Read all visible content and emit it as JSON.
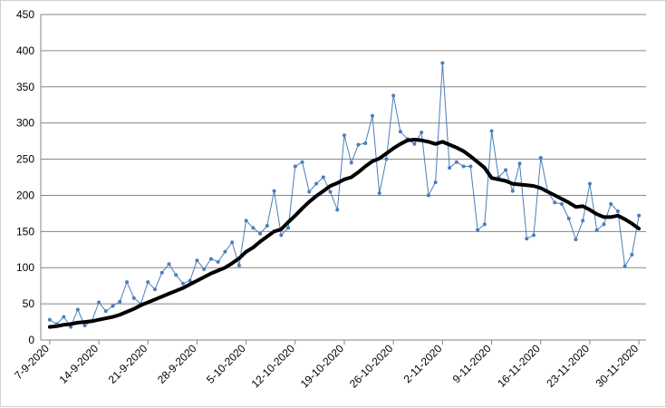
{
  "chart_data": {
    "type": "line",
    "title": "",
    "xlabel": "",
    "ylabel": "",
    "ylim": [
      0,
      450
    ],
    "yticks": [
      0,
      50,
      100,
      150,
      200,
      250,
      300,
      350,
      400,
      450
    ],
    "grid": "horizontal",
    "x_tick_labels": [
      "7-9-2020",
      "14-9-2020",
      "21-9-2020",
      "28-9-2020",
      "5-10-2020",
      "12-10-2020",
      "19-10-2020",
      "26-10-2020",
      "2-11-2020",
      "9-11-2020",
      "16-11-2020",
      "23-11-2020",
      "30-11-2020"
    ],
    "series": [
      {
        "color": "#4a7ebb",
        "style": "thin-line-with-markers",
        "values": [
          28,
          22,
          32,
          18,
          42,
          20,
          26,
          52,
          40,
          47,
          53,
          80,
          58,
          50,
          80,
          70,
          93,
          105,
          90,
          78,
          82,
          110,
          98,
          112,
          108,
          122,
          135,
          103,
          165,
          155,
          147,
          158,
          206,
          145,
          155,
          240,
          246,
          205,
          216,
          225,
          205,
          180,
          283,
          245,
          270,
          272,
          310,
          203,
          250,
          338,
          288,
          278,
          271,
          287,
          200,
          218,
          383,
          238,
          246,
          240,
          240,
          152,
          160,
          289,
          225,
          235,
          206,
          244,
          140,
          145,
          252,
          205,
          190,
          188,
          168,
          139,
          165,
          216,
          152,
          160,
          188,
          178,
          102,
          118,
          172
        ]
      },
      {
        "color": "#000000",
        "style": "thick-smooth-line",
        "values": [
          18,
          19,
          21,
          22,
          24,
          25,
          26,
          28,
          30,
          32,
          35,
          39,
          43,
          48,
          52,
          56,
          60,
          64,
          68,
          72,
          77,
          82,
          87,
          92,
          96,
          100,
          106,
          113,
          122,
          128,
          136,
          143,
          150,
          153,
          163,
          172,
          182,
          191,
          199,
          206,
          213,
          217,
          222,
          225,
          232,
          240,
          247,
          251,
          258,
          265,
          271,
          276,
          277,
          276,
          274,
          271,
          274,
          270,
          266,
          261,
          254,
          246,
          238,
          224,
          222,
          220,
          216,
          215,
          214,
          213,
          210,
          205,
          200,
          195,
          190,
          184,
          185,
          180,
          174,
          170,
          170,
          172,
          167,
          161,
          154
        ]
      }
    ]
  }
}
